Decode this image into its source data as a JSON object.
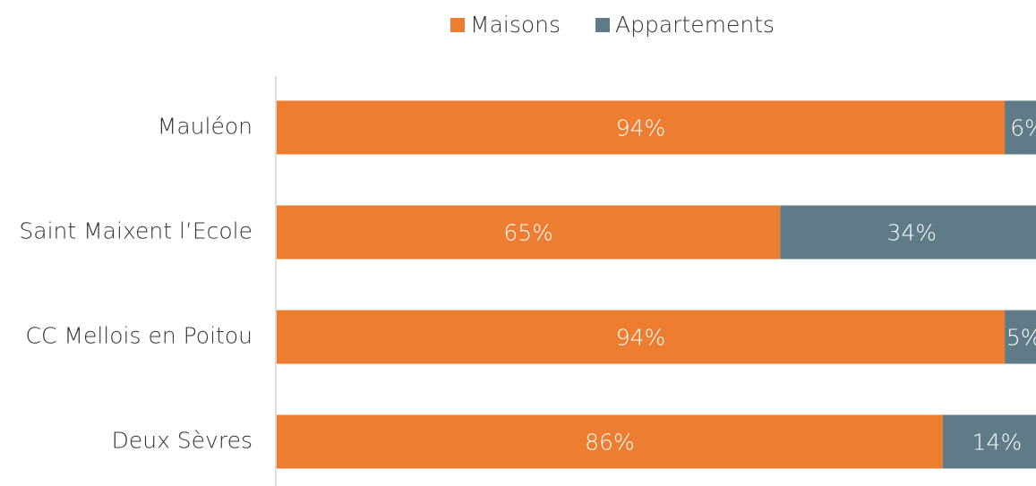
{
  "chart_data": {
    "type": "stacked_bar_horizontal",
    "categories": [
      "Mauléon",
      "Saint Maixent l’Ecole",
      "CC Mellois en Poitou",
      "Deux Sèvres"
    ],
    "series": [
      {
        "name": "Maisons",
        "color": "#ed7d31",
        "values": [
          94,
          65,
          94,
          86
        ],
        "value_labels": [
          "94%",
          "65%",
          "94%",
          "86%"
        ]
      },
      {
        "name": "Appartements",
        "color": "#5f7b88",
        "values": [
          6,
          34,
          5,
          14
        ],
        "value_labels": [
          "6%",
          "34%",
          "5%",
          "14%"
        ]
      }
    ],
    "xlim": [
      0,
      100
    ],
    "legend": "top"
  }
}
